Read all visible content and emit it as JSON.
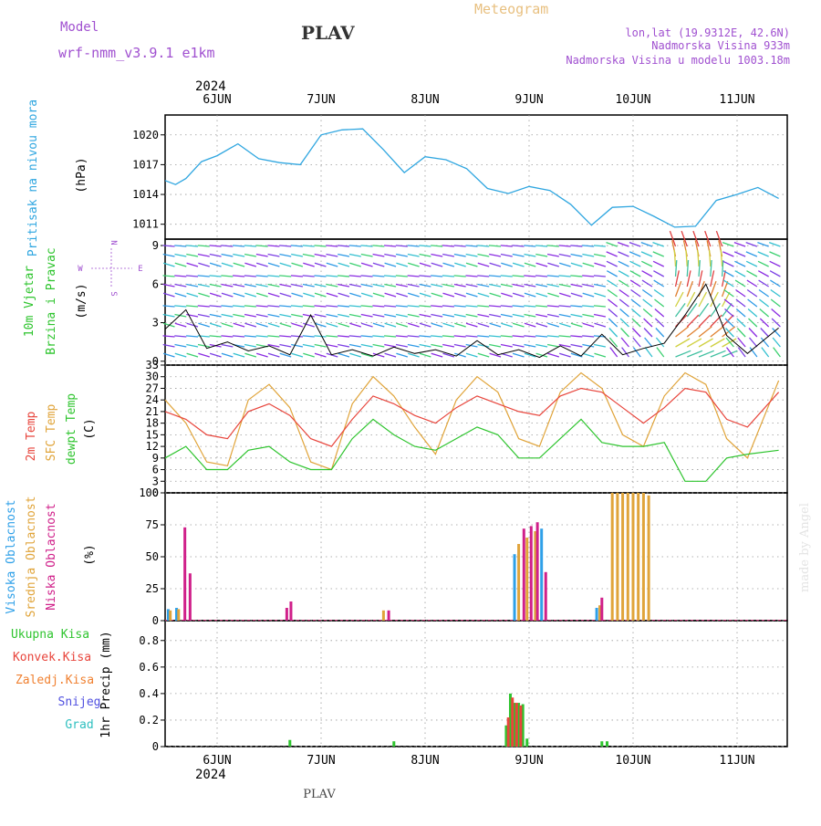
{
  "header": {
    "model_label": "Model",
    "model_name": "wrf-nmm_v3.9.1 e1km",
    "station": "PLAV",
    "meteogram": "Meteogram",
    "lonlat": "lon,lat (19.9312E, 42.6N)",
    "elevation": "Nadmorska Visina 933m",
    "model_elevation": "Nadmorska Visina u modelu 1003.18m"
  },
  "footer": {
    "station": "PLAV",
    "credit": "made by Angel"
  },
  "colors": {
    "pressure": "#2fa6e0",
    "temp2m": "#e8453c",
    "sfc": "#e0a43a",
    "dewpt": "#2ec42e",
    "high": "#2fa0e8",
    "mid": "#e0a43a",
    "low": "#d0208a",
    "total": "#2ec42e",
    "conv": "#e8453c",
    "frz": "#f08030",
    "snow": "#5050e0",
    "grad": "#30c0c0",
    "label_purple": "#a050d0"
  },
  "time_axis": {
    "year": "2024",
    "days": [
      "6JUN",
      "7JUN",
      "8JUN",
      "9JUN",
      "10JUN",
      "11JUN"
    ]
  },
  "panels": {
    "pressure": {
      "labels": [
        "Pritisak na nivou mora"
      ],
      "unit": "(hPa)"
    },
    "wind": {
      "labels": [
        "10m Vjetar",
        "Brzina i Pravac"
      ],
      "unit": "(m/s)",
      "compass": {
        "n": "N",
        "s": "S",
        "w": "W",
        "e": "E"
      }
    },
    "temp": {
      "labels": [
        "2m Temp",
        "SFC Temp",
        "dewpt Temp"
      ],
      "unit": "(C)"
    },
    "cloud": {
      "labels": [
        "Visoka Oblacnost",
        "Srednja Oblacnost",
        "Niska Oblacnost"
      ],
      "unit": "(%)"
    },
    "precip": {
      "labels": [
        "Ukupna Kisa",
        "Konvek.Kisa",
        "Zaledj.Kisa",
        "Snijeg",
        "Grad"
      ],
      "unit": "1hr Precip (mm)"
    }
  },
  "chart_data": [
    {
      "type": "line",
      "name": "pressure",
      "ylabel": "(hPa)",
      "ylim": [
        1009.5,
        1022
      ],
      "yticks": [
        1011,
        1014,
        1017,
        1020
      ],
      "x_days": [
        0,
        0.1,
        0.2,
        0.35,
        0.5,
        0.7,
        0.9,
        1.1,
        1.3,
        1.5,
        1.7,
        1.9,
        2.1,
        2.3,
        2.5,
        2.7,
        2.9,
        3.1,
        3.3,
        3.5,
        3.7,
        3.9,
        4.1,
        4.3,
        4.5,
        4.7,
        4.9,
        5.1,
        5.3,
        5.5,
        5.7,
        5.9
      ],
      "values": [
        1015.4,
        1015.0,
        1015.6,
        1017.3,
        1017.9,
        1019.1,
        1017.6,
        1017.2,
        1017.0,
        1020.0,
        1020.5,
        1020.6,
        1018.5,
        1016.2,
        1017.8,
        1017.5,
        1016.6,
        1014.6,
        1014.1,
        1014.8,
        1014.4,
        1013.0,
        1010.9,
        1012.7,
        1012.8,
        1011.8,
        1010.7,
        1010.8,
        1013.4,
        1014.0,
        1014.7,
        1013.6
      ]
    },
    {
      "type": "line",
      "name": "wind speed",
      "ylabel": "(m/s)",
      "ylim": [
        -0.3,
        9.5
      ],
      "yticks": [
        0,
        3,
        6,
        9
      ],
      "x_days": [
        0,
        0.2,
        0.4,
        0.6,
        0.8,
        1.0,
        1.2,
        1.4,
        1.6,
        1.8,
        2.0,
        2.2,
        2.4,
        2.6,
        2.8,
        3.0,
        3.2,
        3.4,
        3.6,
        3.8,
        4.0,
        4.2,
        4.4,
        4.6,
        4.8,
        5.0,
        5.2,
        5.4,
        5.6,
        5.9
      ],
      "values": [
        2.5,
        4.0,
        1.0,
        1.5,
        0.8,
        1.2,
        0.5,
        3.6,
        0.5,
        0.9,
        0.4,
        1.1,
        0.6,
        0.9,
        0.4,
        1.6,
        0.5,
        0.9,
        0.3,
        1.2,
        0.4,
        2.1,
        0.5,
        1.0,
        1.4,
        3.6,
        6.0,
        2.0,
        0.6,
        2.6
      ]
    },
    {
      "type": "line",
      "name": "temperature",
      "ylabel": "(C)",
      "ylim": [
        0,
        33
      ],
      "yticks": [
        0,
        3,
        6,
        9,
        12,
        15,
        18,
        21,
        24,
        27,
        30,
        33
      ],
      "x_days": [
        0,
        0.2,
        0.4,
        0.6,
        0.8,
        1.0,
        1.2,
        1.4,
        1.6,
        1.8,
        2.0,
        2.2,
        2.4,
        2.6,
        2.8,
        3.0,
        3.2,
        3.4,
        3.6,
        3.8,
        4.0,
        4.2,
        4.4,
        4.6,
        4.8,
        5.0,
        5.2,
        5.4,
        5.6,
        5.9
      ],
      "series": [
        {
          "name": "2m Temp",
          "values": [
            21,
            19,
            15,
            14,
            21,
            23,
            20,
            14,
            12,
            19,
            25,
            23,
            20,
            18,
            22,
            25,
            23,
            21,
            20,
            25,
            27,
            26,
            22,
            18,
            22,
            27,
            26,
            19,
            17,
            26
          ]
        },
        {
          "name": "SFC Temp",
          "values": [
            24,
            18,
            8,
            7,
            24,
            28,
            22,
            8,
            6,
            23,
            30,
            25,
            17,
            10,
            24,
            30,
            26,
            14,
            12,
            26,
            31,
            27,
            15,
            12,
            25,
            31,
            28,
            14,
            9,
            29
          ]
        },
        {
          "name": "dewpt Temp",
          "values": [
            9,
            12,
            6,
            6,
            11,
            12,
            8,
            6,
            6,
            14,
            19,
            15,
            12,
            11,
            14,
            17,
            15,
            9,
            9,
            14,
            19,
            13,
            12,
            12,
            13,
            3,
            3,
            9,
            10,
            11
          ]
        }
      ]
    },
    {
      "type": "bar",
      "name": "cloud cover",
      "ylabel": "(%)",
      "ylim": [
        0,
        100
      ],
      "yticks": [
        0,
        25,
        50,
        75,
        100
      ],
      "series": [
        {
          "name": "Visoka Oblacnost",
          "x_days": [
            0.03,
            0.11,
            3.36,
            3.62,
            4.15,
            4.47,
            4.5,
            4.54,
            4.57,
            4.6
          ],
          "values": [
            9,
            10,
            52,
            72,
            10,
            0,
            0,
            0,
            0,
            0
          ]
        },
        {
          "name": "Srednja Oblacnost",
          "x_days": [
            0.05,
            0.13,
            2.1,
            3.4,
            3.48,
            3.56,
            4.18,
            4.3,
            4.35,
            4.4,
            4.45,
            4.5,
            4.55,
            4.6,
            4.65
          ],
          "values": [
            8,
            9,
            8,
            60,
            65,
            70,
            12,
            100,
            100,
            100,
            100,
            100,
            100,
            100,
            98
          ]
        },
        {
          "name": "Niska Oblacnost",
          "x_days": [
            0.19,
            0.24,
            1.17,
            1.21,
            2.15,
            3.45,
            3.52,
            3.58,
            3.66,
            4.2
          ],
          "values": [
            73,
            37,
            10,
            15,
            8,
            72,
            74,
            77,
            38,
            18
          ]
        }
      ]
    },
    {
      "type": "bar",
      "name": "1hr precipitation",
      "ylabel": "1hr Precip (mm)",
      "ylim": [
        0,
        0.95
      ],
      "yticks": [
        0,
        0.2,
        0.4,
        0.6,
        0.8
      ],
      "series": [
        {
          "name": "Ukupna Kisa",
          "x_days": [
            1.2,
            2.2,
            3.28,
            3.32,
            3.36,
            3.4,
            3.44,
            3.48,
            4.2,
            4.25
          ],
          "values": [
            0.05,
            0.04,
            0.16,
            0.4,
            0.33,
            0.33,
            0.32,
            0.06,
            0.04,
            0.04
          ]
        },
        {
          "name": "Konvek.Kisa",
          "x_days": [
            3.3,
            3.34,
            3.38,
            3.42
          ],
          "values": [
            0.22,
            0.37,
            0.33,
            0.31
          ]
        }
      ]
    }
  ]
}
